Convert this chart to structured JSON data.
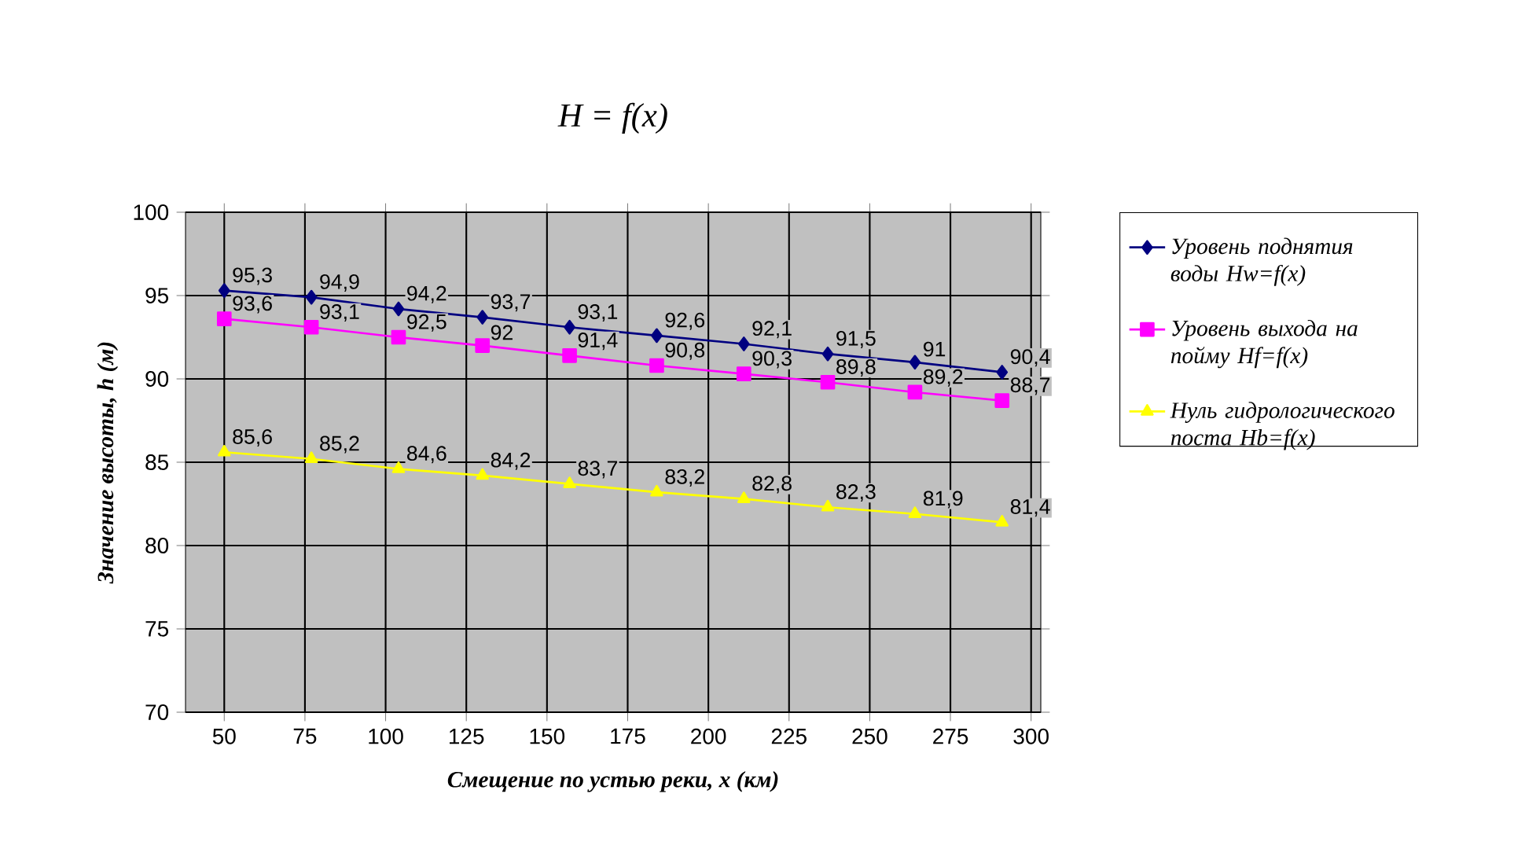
{
  "chart_data": {
    "type": "line",
    "title": "H = f(x)",
    "xlabel": "Смещение по устью реки, x (км)",
    "ylabel": "Значение высоты, h (м)",
    "x": [
      50,
      77,
      104,
      130,
      157,
      184,
      211,
      237,
      264,
      291
    ],
    "xlim": [
      38,
      303
    ],
    "xticks": [
      50,
      75,
      100,
      125,
      150,
      175,
      200,
      225,
      250,
      275,
      300
    ],
    "ylim": [
      70,
      100
    ],
    "yticks": [
      70,
      75,
      80,
      85,
      90,
      95,
      100
    ],
    "grid": true,
    "legend": "right",
    "series": [
      {
        "name": "Уровень поднятия воды Hw=f(x)",
        "color": "#000080",
        "marker": "diamond",
        "values": [
          95.3,
          94.9,
          94.2,
          93.7,
          93.1,
          92.6,
          92.1,
          91.5,
          91,
          90.4
        ],
        "value_labels": [
          "95,3",
          "94,9",
          "94,2",
          "93,7",
          "93,1",
          "92,6",
          "92,1",
          "91,5",
          "91",
          "90,4"
        ]
      },
      {
        "name": "Уровень выхода на пойму Hf=f(x)",
        "color": "#ff00ff",
        "marker": "square",
        "values": [
          93.6,
          93.1,
          92.5,
          92,
          91.4,
          90.8,
          90.3,
          89.8,
          89.2,
          88.7
        ],
        "value_labels": [
          "93,6",
          "93,1",
          "92,5",
          "92",
          "91,4",
          "90,8",
          "90,3",
          "89,8",
          "89,2",
          "88,7"
        ]
      },
      {
        "name": "Нуль гидрологического поста Hb=f(x)",
        "color": "#ffff00",
        "marker": "triangle",
        "values": [
          85.6,
          85.2,
          84.6,
          84.2,
          83.7,
          83.2,
          82.8,
          82.3,
          81.9,
          81.4
        ],
        "value_labels": [
          "85,6",
          "85,2",
          "84,6",
          "84,2",
          "83,7",
          "83,2",
          "82,8",
          "82,3",
          "81,9",
          "81,4"
        ]
      }
    ]
  }
}
